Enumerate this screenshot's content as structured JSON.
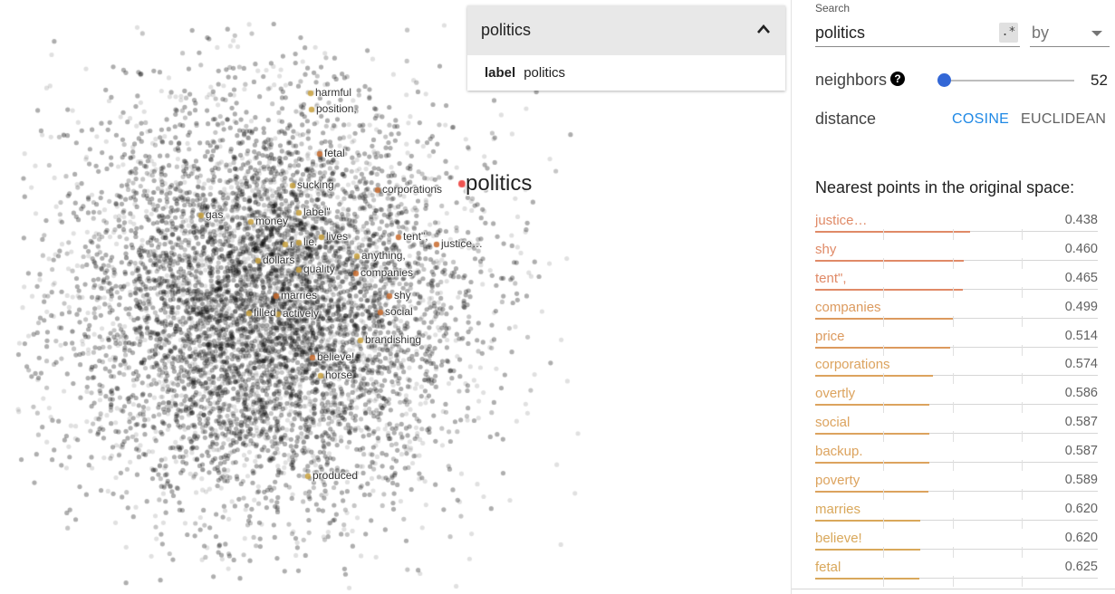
{
  "projection": {
    "selected_label": "politics",
    "labels": [
      "harmful",
      "position,",
      "fetal",
      "sucking",
      "corporations",
      "gas",
      "money",
      "label\"",
      "r",
      "lie.",
      "lives",
      "tent\",",
      "justice…",
      "dollars",
      "anything,",
      "quality",
      "companies",
      "marries",
      "shy",
      "filled",
      "actively",
      "social",
      "brandishing",
      "believe!",
      "horse",
      "produced"
    ],
    "colors": {
      "point": "#000000",
      "highlight": "#c9a13c",
      "neighbor": "#c86a2c",
      "selected": "#ef5350"
    }
  },
  "point_card": {
    "title": "politics",
    "field_key": "label",
    "field_value": "politics",
    "collapse_icon": "chevron-up-icon"
  },
  "search": {
    "label": "Search",
    "value": "politics",
    "regex_label": ".*",
    "by_value": "by"
  },
  "neighbors": {
    "label": "neighbors",
    "help_glyph": "?",
    "value": "52",
    "slider_fraction": 0.03,
    "accent": "#3367d6"
  },
  "distance": {
    "label": "distance",
    "cosine": "COSINE",
    "euclidean": "EUCLIDEAN",
    "active": "COSINE",
    "active_color": "#1e88e5"
  },
  "nearest": {
    "title": "Nearest points in the original space:",
    "items": [
      {
        "label": "justice…",
        "value": "0.438",
        "color": "#e08a67"
      },
      {
        "label": "shy",
        "value": "0.460",
        "color": "#e08a67"
      },
      {
        "label": "tent\",",
        "value": "0.465",
        "color": "#e08a67"
      },
      {
        "label": "companies",
        "value": "0.499",
        "color": "#dc9a5e"
      },
      {
        "label": "price",
        "value": "0.514",
        "color": "#dc9a5e"
      },
      {
        "label": "corporations",
        "value": "0.574",
        "color": "#dca35e"
      },
      {
        "label": "overtly",
        "value": "0.586",
        "color": "#dca35e"
      },
      {
        "label": "social",
        "value": "0.587",
        "color": "#dca35e"
      },
      {
        "label": "backup.",
        "value": "0.587",
        "color": "#dca35e"
      },
      {
        "label": "poverty",
        "value": "0.589",
        "color": "#dca35e"
      },
      {
        "label": "marries",
        "value": "0.620",
        "color": "#d9a85b"
      },
      {
        "label": "believe!",
        "value": "0.620",
        "color": "#d9a85b"
      },
      {
        "label": "fetal",
        "value": "0.625",
        "color": "#d9a85b"
      }
    ]
  }
}
